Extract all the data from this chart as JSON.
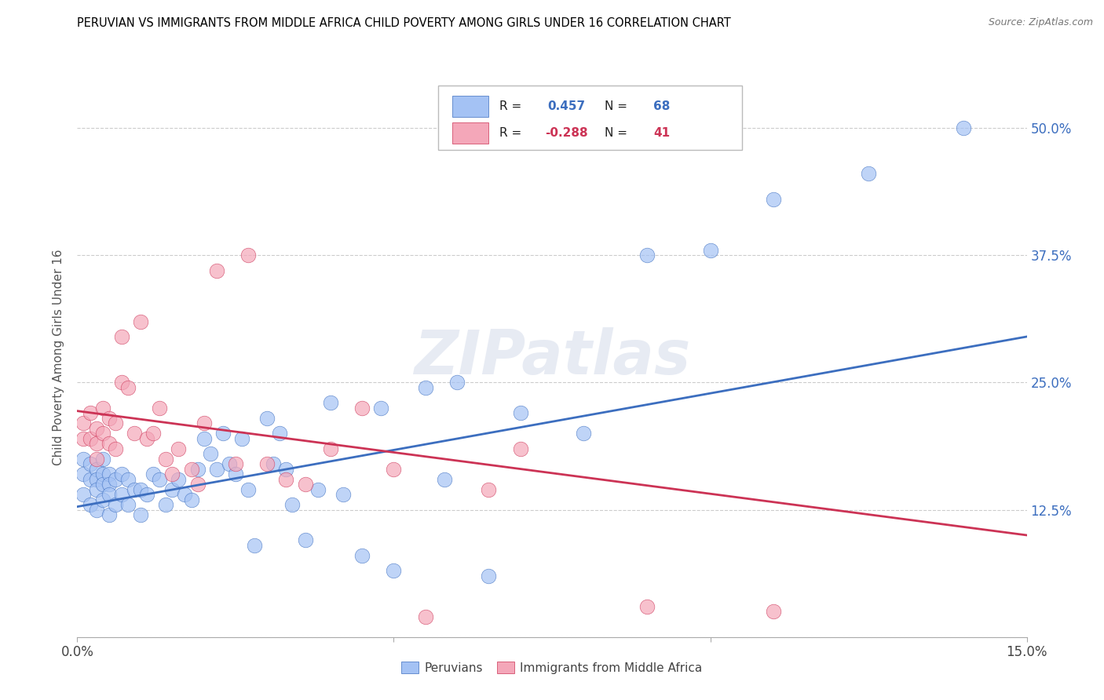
{
  "title": "PERUVIAN VS IMMIGRANTS FROM MIDDLE AFRICA CHILD POVERTY AMONG GIRLS UNDER 16 CORRELATION CHART",
  "source": "Source: ZipAtlas.com",
  "ylabel": "Child Poverty Among Girls Under 16",
  "xlim": [
    0.0,
    0.15
  ],
  "ylim": [
    0.0,
    0.55
  ],
  "xticks": [
    0.0,
    0.05,
    0.1,
    0.15
  ],
  "xticklabels_bottom": [
    "0.0%",
    "",
    "",
    "15.0%"
  ],
  "yticks": [
    0.0,
    0.125,
    0.25,
    0.375,
    0.5
  ],
  "yticklabels_right": [
    "",
    "12.5%",
    "25.0%",
    "37.5%",
    "50.0%"
  ],
  "blue_color": "#a4c2f4",
  "pink_color": "#f4a7b9",
  "blue_line_color": "#3c6ebf",
  "pink_line_color": "#cc3355",
  "r_blue": 0.457,
  "n_blue": 68,
  "r_pink": -0.288,
  "n_pink": 41,
  "watermark": "ZIPatlas",
  "blue_x": [
    0.001,
    0.001,
    0.001,
    0.002,
    0.002,
    0.002,
    0.003,
    0.003,
    0.003,
    0.003,
    0.004,
    0.004,
    0.004,
    0.004,
    0.005,
    0.005,
    0.005,
    0.005,
    0.006,
    0.006,
    0.007,
    0.007,
    0.008,
    0.008,
    0.009,
    0.01,
    0.01,
    0.011,
    0.012,
    0.013,
    0.014,
    0.015,
    0.016,
    0.017,
    0.018,
    0.019,
    0.02,
    0.021,
    0.022,
    0.023,
    0.024,
    0.025,
    0.026,
    0.027,
    0.028,
    0.03,
    0.031,
    0.032,
    0.033,
    0.034,
    0.036,
    0.038,
    0.04,
    0.042,
    0.045,
    0.048,
    0.05,
    0.055,
    0.058,
    0.06,
    0.065,
    0.07,
    0.08,
    0.09,
    0.1,
    0.11,
    0.125,
    0.14
  ],
  "blue_y": [
    0.175,
    0.16,
    0.14,
    0.17,
    0.155,
    0.13,
    0.165,
    0.155,
    0.145,
    0.125,
    0.175,
    0.16,
    0.15,
    0.135,
    0.16,
    0.15,
    0.14,
    0.12,
    0.155,
    0.13,
    0.16,
    0.14,
    0.155,
    0.13,
    0.145,
    0.145,
    0.12,
    0.14,
    0.16,
    0.155,
    0.13,
    0.145,
    0.155,
    0.14,
    0.135,
    0.165,
    0.195,
    0.18,
    0.165,
    0.2,
    0.17,
    0.16,
    0.195,
    0.145,
    0.09,
    0.215,
    0.17,
    0.2,
    0.165,
    0.13,
    0.095,
    0.145,
    0.23,
    0.14,
    0.08,
    0.225,
    0.065,
    0.245,
    0.155,
    0.25,
    0.06,
    0.22,
    0.2,
    0.375,
    0.38,
    0.43,
    0.455,
    0.5
  ],
  "pink_x": [
    0.001,
    0.001,
    0.002,
    0.002,
    0.003,
    0.003,
    0.003,
    0.004,
    0.004,
    0.005,
    0.005,
    0.006,
    0.006,
    0.007,
    0.007,
    0.008,
    0.009,
    0.01,
    0.011,
    0.012,
    0.013,
    0.014,
    0.015,
    0.016,
    0.018,
    0.019,
    0.02,
    0.022,
    0.025,
    0.027,
    0.03,
    0.033,
    0.036,
    0.04,
    0.045,
    0.05,
    0.055,
    0.065,
    0.07,
    0.09,
    0.11
  ],
  "pink_y": [
    0.21,
    0.195,
    0.22,
    0.195,
    0.205,
    0.19,
    0.175,
    0.225,
    0.2,
    0.215,
    0.19,
    0.21,
    0.185,
    0.295,
    0.25,
    0.245,
    0.2,
    0.31,
    0.195,
    0.2,
    0.225,
    0.175,
    0.16,
    0.185,
    0.165,
    0.15,
    0.21,
    0.36,
    0.17,
    0.375,
    0.17,
    0.155,
    0.15,
    0.185,
    0.225,
    0.165,
    0.02,
    0.145,
    0.185,
    0.03,
    0.025
  ],
  "blue_trend_x": [
    0.0,
    0.15
  ],
  "blue_trend_y": [
    0.128,
    0.295
  ],
  "pink_trend_x": [
    0.0,
    0.15
  ],
  "pink_trend_y": [
    0.222,
    0.1
  ]
}
